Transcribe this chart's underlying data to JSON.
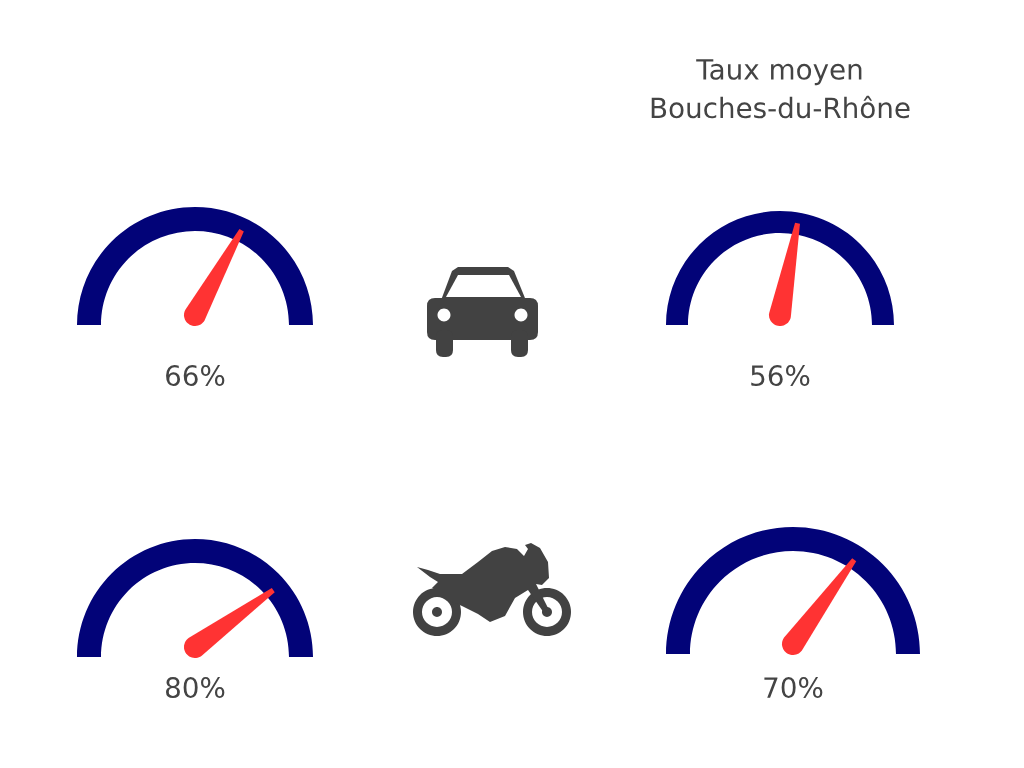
{
  "chart_data": [
    {
      "type": "other",
      "values": [
        66
      ],
      "value_labels": [
        "66%"
      ],
      "color": "#ff3333"
    },
    {
      "type": "other",
      "title": "Taux moyen\nBouches-du-Rhône",
      "values": [
        56
      ],
      "value_labels": [
        "56%"
      ],
      "color": "#ff3333"
    },
    {
      "type": "other",
      "values": [
        80
      ],
      "value_labels": [
        "80%"
      ],
      "color": "#ff3333"
    },
    {
      "type": "other",
      "values": [
        70
      ],
      "value_labels": [
        "70%"
      ],
      "color": "#ff3333"
    }
  ]
}
